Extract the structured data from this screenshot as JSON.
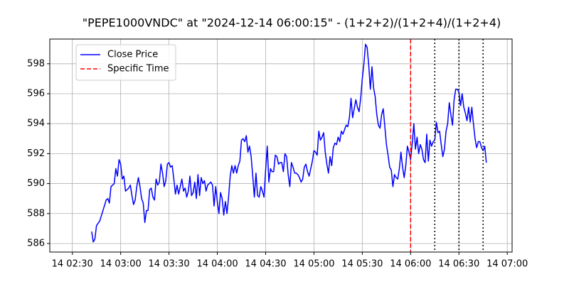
{
  "chart_data": {
    "type": "line",
    "title": "\"PEPE1000VNDC\" at \"2024-12-14 06:00:15\" - (1+2+2)/(1+2+4)/(1+2+4)",
    "x": [
      "14 02:42",
      "14 02:43",
      "14 02:44",
      "14 02:45",
      "14 02:47",
      "14 02:49",
      "14 02:51",
      "14 02:52",
      "14 02:53",
      "14 02:54",
      "14 02:56",
      "14 02:57",
      "14 02:58",
      "14 02:59",
      "14 03:00",
      "14 03:01",
      "14 03:02",
      "14 03:03",
      "14 03:05",
      "14 03:06",
      "14 03:07",
      "14 03:08",
      "14 03:09",
      "14 03:10",
      "14 03:11",
      "14 03:12",
      "14 03:13",
      "14 03:14",
      "14 03:15",
      "14 03:16",
      "14 03:17",
      "14 03:18",
      "14 03:19",
      "14 03:20",
      "14 03:21",
      "14 03:22",
      "14 03:23",
      "14 03:24",
      "14 03:25",
      "14 03:26",
      "14 03:27",
      "14 03:28",
      "14 03:29",
      "14 03:30",
      "14 03:31",
      "14 03:32",
      "14 03:33",
      "14 03:34",
      "14 03:35",
      "14 03:36",
      "14 03:37",
      "14 03:38",
      "14 03:39",
      "14 03:40",
      "14 03:41",
      "14 03:42",
      "14 03:43",
      "14 03:44",
      "14 03:45",
      "14 03:46",
      "14 03:47",
      "14 03:48",
      "14 03:49",
      "14 03:50",
      "14 03:51",
      "14 03:52",
      "14 03:53",
      "14 03:54",
      "14 03:56",
      "14 03:57",
      "14 03:58",
      "14 03:59",
      "14 04:00",
      "14 04:01",
      "14 04:02",
      "14 04:03",
      "14 04:04",
      "14 04:05",
      "14 04:06",
      "14 04:07",
      "14 04:08",
      "14 04:09",
      "14 04:10",
      "14 04:11",
      "14 04:12",
      "14 04:13",
      "14 04:14",
      "14 04:15",
      "14 04:16",
      "14 04:17",
      "14 04:18",
      "14 04:19",
      "14 04:20",
      "14 04:21",
      "14 04:22",
      "14 04:23",
      "14 04:24",
      "14 04:25",
      "14 04:26",
      "14 04:27",
      "14 04:28",
      "14 04:29",
      "14 04:30",
      "14 04:31",
      "14 04:32",
      "14 04:33",
      "14 04:34",
      "14 04:35",
      "14 04:36",
      "14 04:37",
      "14 04:38",
      "14 04:39",
      "14 04:40",
      "14 04:41",
      "14 04:42",
      "14 04:43",
      "14 04:44",
      "14 04:45",
      "14 04:46",
      "14 04:47",
      "14 04:48",
      "14 04:49",
      "14 04:50",
      "14 04:51",
      "14 04:52",
      "14 04:53",
      "14 04:54",
      "14 04:55",
      "14 04:56",
      "14 04:57",
      "14 04:58",
      "14 04:59",
      "14 05:00",
      "14 05:01",
      "14 05:02",
      "14 05:03",
      "14 05:04",
      "14 05:05",
      "14 05:06",
      "14 05:07",
      "14 05:08",
      "14 05:09",
      "14 05:10",
      "14 05:11",
      "14 05:12",
      "14 05:13",
      "14 05:14",
      "14 05:15",
      "14 05:16",
      "14 05:17",
      "14 05:18",
      "14 05:19",
      "14 05:20",
      "14 05:21",
      "14 05:22",
      "14 05:23",
      "14 05:24",
      "14 05:25",
      "14 05:26",
      "14 05:27",
      "14 05:28",
      "14 05:29",
      "14 05:30",
      "14 05:31",
      "14 05:32",
      "14 05:33",
      "14 05:34",
      "14 05:35",
      "14 05:36",
      "14 05:37",
      "14 05:38",
      "14 05:39",
      "14 05:40",
      "14 05:41",
      "14 05:42",
      "14 05:43",
      "14 05:44",
      "14 05:45",
      "14 05:46",
      "14 05:47",
      "14 05:48",
      "14 05:49",
      "14 05:50",
      "14 05:51",
      "14 05:52",
      "14 05:53",
      "14 05:54",
      "14 05:55",
      "14 05:56",
      "14 05:57",
      "14 05:58",
      "14 05:59",
      "14 06:00",
      "14 06:01",
      "14 06:02",
      "14 06:03",
      "14 06:04",
      "14 06:05",
      "14 06:06",
      "14 06:07",
      "14 06:08",
      "14 06:09",
      "14 06:10",
      "14 06:11",
      "14 06:12",
      "14 06:13",
      "14 06:14",
      "14 06:15",
      "14 06:16",
      "14 06:17",
      "14 06:18",
      "14 06:19",
      "14 06:20",
      "14 06:21",
      "14 06:22",
      "14 06:23",
      "14 06:24",
      "14 06:25",
      "14 06:26",
      "14 06:27",
      "14 06:28",
      "14 06:29",
      "14 06:30",
      "14 06:31",
      "14 06:32",
      "14 06:33",
      "14 06:34",
      "14 06:35",
      "14 06:36",
      "14 06:37",
      "14 06:38",
      "14 06:39",
      "14 06:40",
      "14 06:41",
      "14 06:42",
      "14 06:43",
      "14 06:44",
      "14 06:45",
      "14 06:46",
      "14 06:47"
    ],
    "series": [
      {
        "name": "Close Price",
        "color": "#0000ff",
        "values": [
          586.8,
          586.1,
          586.3,
          587.2,
          587.5,
          588.2,
          588.9,
          589.0,
          588.7,
          589.8,
          590.0,
          591.0,
          590.5,
          591.6,
          591.3,
          590.3,
          590.5,
          589.5,
          589.7,
          589.9,
          589.2,
          588.6,
          588.9,
          589.8,
          590.4,
          589.8,
          589.0,
          588.7,
          587.4,
          588.2,
          588.2,
          589.6,
          589.7,
          589.1,
          588.9,
          590.3,
          589.9,
          590.1,
          591.3,
          590.7,
          589.8,
          590.2,
          591.3,
          591.4,
          591.1,
          591.2,
          590.3,
          589.3,
          589.9,
          589.3,
          589.8,
          590.3,
          589.5,
          589.7,
          589.1,
          589.5,
          590.5,
          589.2,
          589.4,
          590.1,
          589.0,
          590.6,
          589.2,
          590.4,
          590.0,
          590.2,
          589.5,
          589.9,
          590.1,
          589.9,
          588.5,
          589.8,
          588.8,
          588.0,
          589.4,
          589.0,
          587.9,
          588.8,
          588.0,
          589.1,
          590.5,
          591.2,
          590.7,
          591.2,
          590.7,
          591.2,
          591.5,
          592.9,
          593.0,
          592.8,
          593.2,
          592.1,
          592.5,
          591.8,
          590.5,
          589.1,
          590.7,
          589.2,
          589.1,
          589.8,
          589.5,
          589.1,
          590.9,
          592.5,
          590.1,
          591.0,
          590.8,
          590.8,
          591.9,
          591.8,
          591.3,
          591.4,
          591.4,
          590.8,
          592.0,
          591.8,
          590.6,
          589.8,
          591.4,
          591.1,
          590.7,
          590.7,
          590.6,
          590.4,
          590.1,
          590.3,
          591.1,
          591.3,
          590.8,
          590.5,
          591.0,
          591.5,
          592.2,
          592.1,
          591.9,
          593.5,
          592.9,
          593.1,
          593.4,
          592.1,
          591.3,
          590.7,
          591.8,
          591.2,
          592.4,
          592.7,
          592.6,
          593.1,
          592.8,
          593.5,
          593.3,
          593.6,
          593.9,
          593.8,
          594.4,
          595.7,
          594.4,
          595.0,
          595.6,
          595.1,
          594.8,
          595.7,
          597.0,
          598.0,
          599.3,
          599.1,
          597.9,
          596.3,
          597.8,
          596.4,
          595.8,
          594.6,
          593.9,
          593.7,
          594.6,
          595.0,
          593.8,
          592.6,
          591.9,
          591.1,
          590.9,
          589.8,
          590.6,
          590.4,
          590.3,
          591.0,
          592.1,
          591.1,
          590.4,
          591.2,
          592.5,
          592.1,
          591.6,
          592.7,
          594.0,
          592.3,
          593.1,
          592.0,
          592.6,
          592.3,
          591.6,
          591.4,
          593.3,
          591.5,
          592.9,
          592.5,
          592.8,
          592.9,
          594.1,
          593.4,
          593.5,
          592.6,
          591.8,
          592.3,
          593.5,
          594.0,
          595.4,
          594.6,
          593.9,
          595.6,
          596.3,
          596.3,
          596.1,
          595.2,
          596.0,
          595.1,
          594.7,
          594.2,
          595.1,
          594.1,
          595.1,
          594.0,
          593.0,
          592.4,
          592.8,
          592.8,
          592.4,
          592.2,
          592.5,
          591.4
        ]
      }
    ],
    "vlines": [
      {
        "x": "14 06:00",
        "name": "Specific Time",
        "color": "#ff0000",
        "style": "dashed"
      },
      {
        "x": "14 06:15",
        "color": "#000000",
        "style": "dotted"
      },
      {
        "x": "14 06:30",
        "color": "#000000",
        "style": "dotted"
      },
      {
        "x": "14 06:45",
        "color": "#000000",
        "style": "dotted"
      }
    ],
    "xlim": [
      "14 02:16",
      "14 07:03"
    ],
    "xticks": [
      "14 02:30",
      "14 03:00",
      "14 03:30",
      "14 04:00",
      "14 04:30",
      "14 05:00",
      "14 05:30",
      "14 06:00",
      "14 06:30",
      "14 07:00"
    ],
    "ylim": [
      585.43,
      599.65
    ],
    "yticks": [
      586,
      588,
      590,
      592,
      594,
      596,
      598
    ],
    "grid": true,
    "legend": "upper left"
  }
}
